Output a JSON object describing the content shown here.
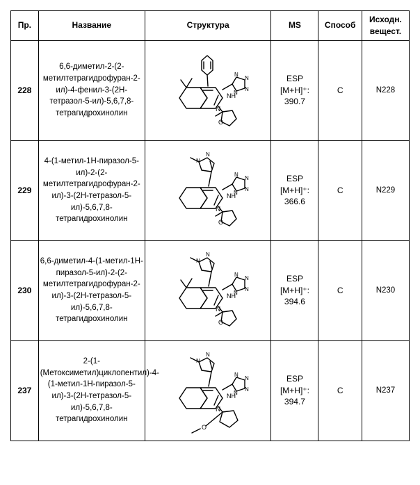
{
  "headers": {
    "pr": "Пр.",
    "name": "Название",
    "struct": "Структура",
    "ms": "MS",
    "method": "Способ",
    "source": "Исходн. вещест."
  },
  "rows": [
    {
      "pr": "228",
      "name": "6,6-диметил-2-(2-метилтетрагидрофуран-2-ил)-4-фенил-3-(2H-тетразол-5-ил)-5,6,7,8-тетрагидрохинолин",
      "ms_line1": "ESP",
      "ms_line2": "[M+H]⁺:",
      "ms_line3": "390.7",
      "method": "C",
      "source": "N228",
      "struct_type": "phenyl_dimethyl"
    },
    {
      "pr": "229",
      "name": "4-(1-метил-1H-пиразол-5-ил)-2-(2-метилтетрагидрофуран-2-ил)-3-(2H-тетразол-5-ил)-5,6,7,8-тетрагидрохинолин",
      "ms_line1": "ESP",
      "ms_line2": "[M+H]⁺:",
      "ms_line3": "366.6",
      "method": "C",
      "source": "N229",
      "struct_type": "pyrazol_plain"
    },
    {
      "pr": "230",
      "name": "6,6-диметил-4-(1-метил-1H-пиразол-5-ил)-2-(2-метилтетрагидрофуран-2-ил)-3-(2H-тетразол-5-ил)-5,6,7,8-тетрагидрохинолин",
      "ms_line1": "ESP",
      "ms_line2": "[M+H]⁺:",
      "ms_line3": "394.6",
      "method": "C",
      "source": "N230",
      "struct_type": "pyrazol_dimethyl"
    },
    {
      "pr": "237",
      "name": "2-(1-(Метоксиметил)циклопентил)-4-(1-метил-1H-пиразол-5-ил)-3-(2H-тетразол-5-ил)-5,6,7,8-тетрагидрохинолин",
      "ms_line1": "ESP",
      "ms_line2": "[M+H]⁺:",
      "ms_line3": "394.7",
      "method": "C",
      "source": "N237",
      "struct_type": "pyrazol_cyclopentyl"
    }
  ]
}
